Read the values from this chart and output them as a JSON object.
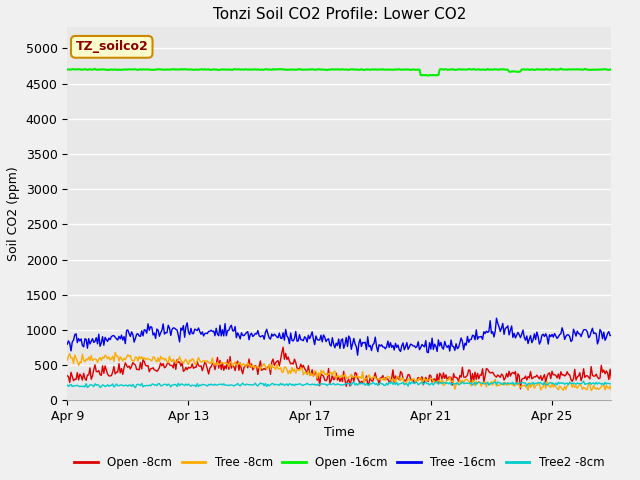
{
  "title": "Tonzi Soil CO2 Profile: Lower CO2",
  "xlabel": "Time",
  "ylabel": "Soil CO2 (ppm)",
  "ylim": [
    0,
    5300
  ],
  "yticks": [
    0,
    500,
    1000,
    1500,
    2000,
    2500,
    3000,
    3500,
    4000,
    4500,
    5000
  ],
  "fig_facecolor": "#f0f0f0",
  "ax_facecolor": "#e8e8e8",
  "grid_color": "#ffffff",
  "legend_label": "TZ_soilco2",
  "legend_box_color": "#ffffcc",
  "legend_box_edge": "#cc8800",
  "series": {
    "open_8cm": {
      "label": "Open -8cm",
      "color": "#dd0000"
    },
    "tree_8cm": {
      "label": "Tree -8cm",
      "color": "#ffaa00"
    },
    "open_16cm": {
      "label": "Open -16cm",
      "color": "#00ee00"
    },
    "tree_16cm": {
      "label": "Tree -16cm",
      "color": "#0000ee"
    },
    "tree2_8cm": {
      "label": "Tree2 -8cm",
      "color": "#00cccc"
    }
  },
  "x_tick_labels": [
    "Apr 9",
    "Apr 13",
    "Apr 17",
    "Apr 21",
    "Apr 25"
  ],
  "x_tick_positions": [
    0,
    96,
    192,
    288,
    384
  ],
  "num_points": 432,
  "open_16cm_base": 4700,
  "open_16cm_dip_start": 280,
  "open_16cm_dip_end": 295,
  "open_16cm_dip_val": 4620,
  "open_16cm_dip2_start": 350,
  "open_16cm_dip2_end": 360,
  "open_16cm_dip2_val": 4670
}
